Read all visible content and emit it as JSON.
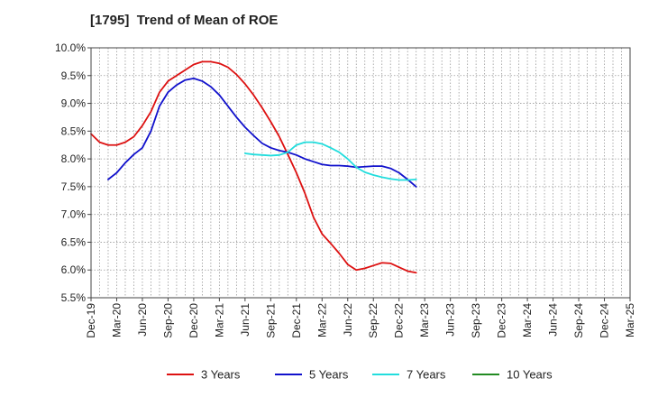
{
  "chart_data": {
    "type": "line",
    "title": "[1795]  Trend of Mean of ROE",
    "xlabel": "",
    "ylabel": "",
    "ylim": [
      5.5,
      10.0
    ],
    "y_ticks": [
      "10.0%",
      "9.5%",
      "9.0%",
      "8.5%",
      "8.0%",
      "7.5%",
      "7.0%",
      "6.5%",
      "6.0%",
      "5.5%"
    ],
    "y_tick_values": [
      10.0,
      9.5,
      9.0,
      8.5,
      8.0,
      7.5,
      7.0,
      6.5,
      6.0,
      5.5
    ],
    "x_ticks": [
      "Dec-19",
      "Mar-20",
      "Jun-20",
      "Sep-20",
      "Dec-20",
      "Mar-21",
      "Jun-21",
      "Sep-21",
      "Dec-21",
      "Mar-22",
      "Jun-22",
      "Sep-22",
      "Dec-22",
      "Mar-23",
      "Jun-23",
      "Sep-23",
      "Dec-23",
      "Mar-24",
      "Jun-24",
      "Sep-24",
      "Dec-24",
      "Mar-25"
    ],
    "grid": true,
    "legend_position": "bottom",
    "series": [
      {
        "name": "3 Years",
        "color": "#dd1111",
        "values": [
          8.45,
          8.3,
          8.25,
          8.25,
          8.3,
          8.4,
          8.6,
          8.85,
          9.2,
          9.4,
          9.5,
          9.6,
          9.7,
          9.75,
          9.75,
          9.72,
          9.65,
          9.52,
          9.35,
          9.15,
          8.92,
          8.67,
          8.4,
          8.08,
          7.75,
          7.38,
          6.95,
          6.65,
          6.48,
          6.3,
          6.1,
          6.0,
          6.03,
          6.08,
          6.13,
          6.12,
          6.05,
          5.98,
          5.95
        ]
      },
      {
        "name": "5 Years",
        "color": "#1111cc",
        "values": [
          null,
          null,
          7.63,
          7.75,
          7.93,
          8.08,
          8.2,
          8.5,
          8.95,
          9.2,
          9.33,
          9.42,
          9.45,
          9.4,
          9.3,
          9.15,
          8.95,
          8.75,
          8.57,
          8.42,
          8.28,
          8.2,
          8.15,
          8.12,
          8.07,
          8.0,
          7.95,
          7.9,
          7.88,
          7.88,
          7.87,
          7.85,
          7.86,
          7.87,
          7.87,
          7.83,
          7.75,
          7.63,
          7.5
        ]
      },
      {
        "name": "7 Years",
        "color": "#22dddd",
        "values": [
          null,
          null,
          null,
          null,
          null,
          null,
          null,
          null,
          null,
          null,
          null,
          null,
          null,
          null,
          null,
          null,
          null,
          null,
          8.1,
          8.08,
          8.07,
          8.06,
          8.07,
          8.12,
          8.25,
          8.3,
          8.3,
          8.27,
          8.2,
          8.12,
          8.0,
          7.85,
          7.76,
          7.71,
          7.67,
          7.64,
          7.62,
          7.62,
          7.63
        ]
      },
      {
        "name": "10 Years",
        "color": "#228b22",
        "values": []
      }
    ]
  }
}
